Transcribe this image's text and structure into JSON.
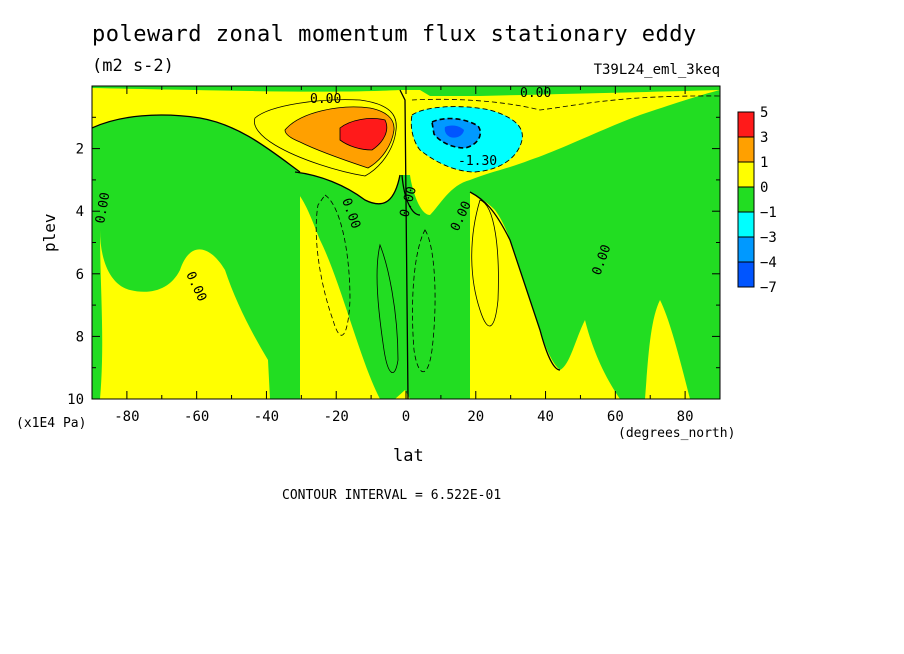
{
  "chart_data": {
    "type": "heatmap",
    "title": "poleward zonal momentum flux stationary eddy",
    "units": "(m2 s-2)",
    "run_id": "T39L24_eml_3keq",
    "xlabel": "lat",
    "x_units": "(degrees_north)",
    "ylabel": "plev",
    "y_multiplier": "(x1E4 Pa)",
    "xlim": [
      -90,
      90
    ],
    "ylim": [
      10,
      0
    ],
    "x_ticks": [
      -80,
      -60,
      -40,
      -20,
      0,
      20,
      40,
      60,
      80
    ],
    "y_ticks": [
      2,
      4,
      6,
      8,
      10
    ],
    "contour_interval_text": "CONTOUR INTERVAL = 6.522E-01",
    "contour_labels": [
      "0.00",
      "0.00",
      "0.00",
      "0.00",
      "0.00",
      "0.00",
      "0.00",
      "0.00",
      "-1.30"
    ],
    "colorbar": {
      "labels": [
        "5",
        "3",
        "1",
        "0",
        "−1",
        "−3",
        "−4",
        "−7"
      ],
      "colors": [
        "#ff1a1a",
        "#ffa000",
        "#ffff00",
        "#22dd22",
        "#00ffff",
        "#0099ff",
        "#0055ff"
      ]
    },
    "features": [
      {
        "name": "positive maximum",
        "lat": -12,
        "plev": 1.5,
        "value": 5
      },
      {
        "name": "negative minimum",
        "lat": 12,
        "plev": 1.5,
        "value": -4
      }
    ]
  }
}
